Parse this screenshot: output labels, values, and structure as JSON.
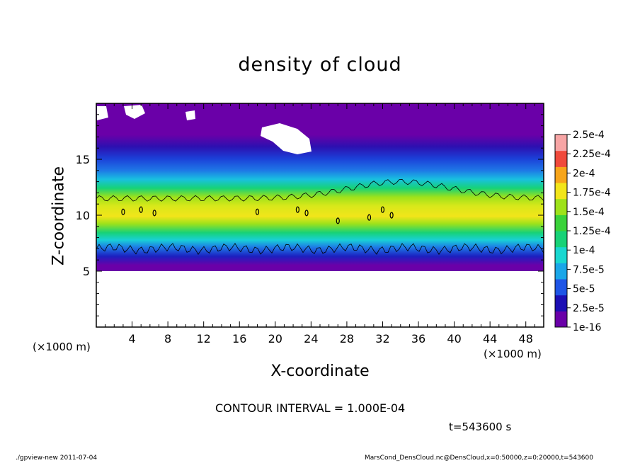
{
  "chart_data": {
    "type": "heatmap",
    "title": "density of cloud",
    "xlabel": "X-coordinate",
    "ylabel": "Z-coordinate",
    "x_unit": "(×1000 m)",
    "xlim": [
      0,
      50
    ],
    "ylim": [
      0,
      20
    ],
    "x_ticks": [
      4,
      8,
      12,
      16,
      20,
      24,
      28,
      32,
      36,
      40,
      44,
      48
    ],
    "y_ticks": [
      5,
      10,
      15
    ],
    "colorbar": {
      "labels": [
        "1e-16",
        "2.5e-5",
        "5e-5",
        "7.5e-5",
        "1e-4",
        "1.25e-4",
        "1.5e-4",
        "1.75e-4",
        "2e-4",
        "2.25e-4",
        "2.5e-4"
      ],
      "colors": [
        "#6a00a8",
        "#1c0fb4",
        "#1e55e6",
        "#1aa6e8",
        "#19d7d0",
        "#17d277",
        "#3ad23a",
        "#9ee21a",
        "#f2e51a",
        "#f7a51a",
        "#f04a3c",
        "#f7a5a5"
      ]
    },
    "contour_interval": "CONTOUR INTERVAL = 1.000E-04",
    "contour_levels": [
      0.0001,
      0.0002
    ],
    "cloud_base_z": 5,
    "cloud_top_z": [
      18.5,
      19
    ],
    "contour_1e4_lower_z": 7,
    "contour_1e4_upper_z": [
      11.5,
      13
    ]
  },
  "labels": {
    "time": "t=543600 s",
    "footer_left": "./gpview-new   2011-07-04",
    "footer_right": "MarsCond_DensCloud.nc@DensCloud,x=0:50000,z=0:20000,t=543600"
  }
}
